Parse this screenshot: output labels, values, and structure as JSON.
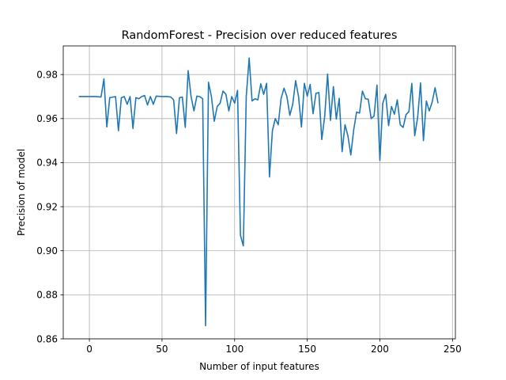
{
  "chart_data": {
    "type": "line",
    "title": "RandomForest - Precision over reduced features",
    "xlabel": "Number of input features",
    "ylabel": "Precision of model",
    "xlim": [
      -18,
      252
    ],
    "ylim": [
      0.86,
      0.993
    ],
    "xticks": [
      0,
      50,
      100,
      150,
      200,
      250
    ],
    "xtick_labels": [
      "0",
      "50",
      "100",
      "150",
      "200",
      "250"
    ],
    "yticks": [
      0.86,
      0.88,
      0.9,
      0.92,
      0.94,
      0.96,
      0.98
    ],
    "ytick_labels": [
      "0.86",
      "0.88",
      "0.90",
      "0.92",
      "0.94",
      "0.96",
      "0.98"
    ],
    "grid": true,
    "series": [
      {
        "name": "precision",
        "color": "#1f77b4",
        "points": [
          [
            -7,
            0.97
          ],
          [
            0,
            0.97
          ],
          [
            4,
            0.97
          ],
          [
            8,
            0.9698
          ],
          [
            10,
            0.978
          ],
          [
            12,
            0.9562
          ],
          [
            14,
            0.9695
          ],
          [
            18,
            0.97
          ],
          [
            20,
            0.9545
          ],
          [
            22,
            0.9695
          ],
          [
            24,
            0.97
          ],
          [
            26,
            0.9665
          ],
          [
            28,
            0.97
          ],
          [
            30,
            0.9555
          ],
          [
            32,
            0.9695
          ],
          [
            34,
            0.969
          ],
          [
            36,
            0.97
          ],
          [
            38,
            0.9705
          ],
          [
            40,
            0.9662
          ],
          [
            42,
            0.97
          ],
          [
            44,
            0.9665
          ],
          [
            46,
            0.9702
          ],
          [
            50,
            0.97
          ],
          [
            54,
            0.97
          ],
          [
            56,
            0.9698
          ],
          [
            58,
            0.9685
          ],
          [
            60,
            0.9532
          ],
          [
            62,
            0.9695
          ],
          [
            64,
            0.9698
          ],
          [
            66,
            0.956
          ],
          [
            68,
            0.9818
          ],
          [
            70,
            0.97
          ],
          [
            72,
            0.9635
          ],
          [
            74,
            0.9702
          ],
          [
            76,
            0.97
          ],
          [
            78,
            0.969
          ],
          [
            80,
            0.866
          ],
          [
            82,
            0.9765
          ],
          [
            84,
            0.97
          ],
          [
            86,
            0.9588
          ],
          [
            88,
            0.9655
          ],
          [
            90,
            0.967
          ],
          [
            92,
            0.9725
          ],
          [
            94,
            0.971
          ],
          [
            96,
            0.9635
          ],
          [
            98,
            0.97
          ],
          [
            100,
            0.967
          ],
          [
            102,
            0.9728
          ],
          [
            104,
            0.907
          ],
          [
            106,
            0.9022
          ],
          [
            108,
            0.97
          ],
          [
            110,
            0.9875
          ],
          [
            112,
            0.968
          ],
          [
            114,
            0.969
          ],
          [
            116,
            0.9685
          ],
          [
            118,
            0.9758
          ],
          [
            120,
            0.971
          ],
          [
            122,
            0.976
          ],
          [
            124,
            0.9335
          ],
          [
            126,
            0.9545
          ],
          [
            128,
            0.96
          ],
          [
            130,
            0.9572
          ],
          [
            132,
            0.9692
          ],
          [
            134,
            0.9738
          ],
          [
            136,
            0.97
          ],
          [
            138,
            0.9615
          ],
          [
            140,
            0.9665
          ],
          [
            142,
            0.9772
          ],
          [
            144,
            0.97
          ],
          [
            146,
            0.9562
          ],
          [
            148,
            0.976
          ],
          [
            150,
            0.9702
          ],
          [
            152,
            0.9755
          ],
          [
            154,
            0.9622
          ],
          [
            156,
            0.9715
          ],
          [
            158,
            0.9718
          ],
          [
            160,
            0.9505
          ],
          [
            162,
            0.961
          ],
          [
            164,
            0.9802
          ],
          [
            166,
            0.9592
          ],
          [
            168,
            0.9745
          ],
          [
            170,
            0.9598
          ],
          [
            172,
            0.9692
          ],
          [
            174,
            0.945
          ],
          [
            176,
            0.9572
          ],
          [
            178,
            0.9522
          ],
          [
            180,
            0.9435
          ],
          [
            182,
            0.955
          ],
          [
            184,
            0.963
          ],
          [
            186,
            0.9625
          ],
          [
            188,
            0.9725
          ],
          [
            190,
            0.969
          ],
          [
            192,
            0.9688
          ],
          [
            194,
            0.96
          ],
          [
            196,
            0.9612
          ],
          [
            198,
            0.9752
          ],
          [
            200,
            0.941
          ],
          [
            202,
            0.967
          ],
          [
            204,
            0.971
          ],
          [
            206,
            0.9568
          ],
          [
            208,
            0.9655
          ],
          [
            210,
            0.962
          ],
          [
            212,
            0.9685
          ],
          [
            214,
            0.9572
          ],
          [
            216,
            0.956
          ],
          [
            218,
            0.9618
          ],
          [
            220,
            0.9632
          ],
          [
            222,
            0.976
          ],
          [
            224,
            0.9522
          ],
          [
            226,
            0.9605
          ],
          [
            228,
            0.9762
          ],
          [
            230,
            0.95
          ],
          [
            232,
            0.968
          ],
          [
            234,
            0.9635
          ],
          [
            236,
            0.9675
          ],
          [
            238,
            0.974
          ],
          [
            240,
            0.9672
          ]
        ]
      }
    ]
  }
}
